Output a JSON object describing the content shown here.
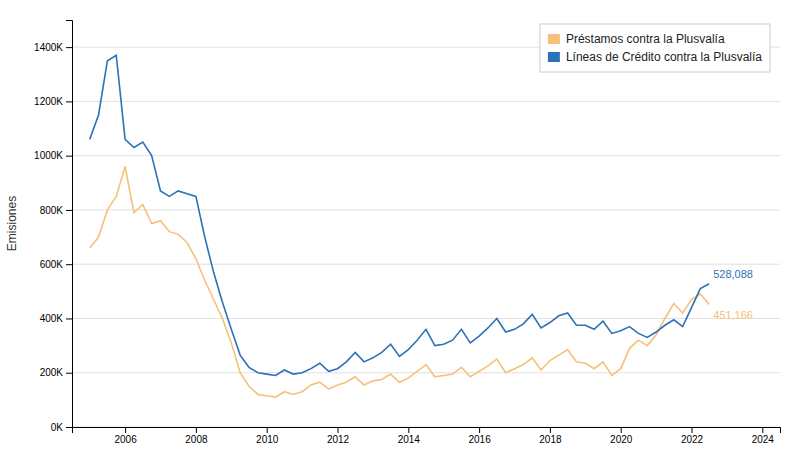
{
  "chart_data": {
    "type": "line",
    "y_label": "Emisiones",
    "x": [
      2005.0,
      2005.25,
      2005.5,
      2005.75,
      2006.0,
      2006.25,
      2006.5,
      2006.75,
      2007.0,
      2007.25,
      2007.5,
      2007.75,
      2008.0,
      2008.25,
      2008.5,
      2008.75,
      2009.0,
      2009.25,
      2009.5,
      2009.75,
      2010.0,
      2010.25,
      2010.5,
      2010.75,
      2011.0,
      2011.25,
      2011.5,
      2011.75,
      2012.0,
      2012.25,
      2012.5,
      2012.75,
      2013.0,
      2013.25,
      2013.5,
      2013.75,
      2014.0,
      2014.25,
      2014.5,
      2014.75,
      2015.0,
      2015.25,
      2015.5,
      2015.75,
      2016.0,
      2016.25,
      2016.5,
      2016.75,
      2017.0,
      2017.25,
      2017.5,
      2017.75,
      2018.0,
      2018.25,
      2018.5,
      2018.75,
      2019.0,
      2019.25,
      2019.5,
      2019.75,
      2020.0,
      2020.25,
      2020.5,
      2020.75,
      2021.0,
      2021.25,
      2021.5,
      2021.75,
      2022.0,
      2022.25,
      2022.5
    ],
    "series": [
      {
        "name": "Préstamos contra la Plusvalía",
        "color": "#f5c07a",
        "values": [
          660000,
          700000,
          800000,
          850000,
          960000,
          790000,
          820000,
          750000,
          760000,
          720000,
          710000,
          680000,
          620000,
          540000,
          470000,
          400000,
          310000,
          200000,
          150000,
          120000,
          115000,
          110000,
          130000,
          120000,
          130000,
          155000,
          165000,
          140000,
          155000,
          165000,
          185000,
          155000,
          170000,
          175000,
          195000,
          165000,
          180000,
          205000,
          230000,
          185000,
          190000,
          195000,
          220000,
          185000,
          205000,
          225000,
          250000,
          200000,
          215000,
          230000,
          255000,
          210000,
          245000,
          265000,
          285000,
          240000,
          235000,
          215000,
          240000,
          190000,
          215000,
          290000,
          320000,
          300000,
          340000,
          400000,
          455000,
          420000,
          470000,
          490000,
          451166
        ]
      },
      {
        "name": "Líneas de Crédito contra la Plusvalía",
        "color": "#2b72b8",
        "values": [
          1060000,
          1150000,
          1350000,
          1370000,
          1060000,
          1030000,
          1050000,
          1000000,
          870000,
          850000,
          870000,
          860000,
          850000,
          700000,
          570000,
          460000,
          360000,
          265000,
          220000,
          200000,
          195000,
          190000,
          210000,
          195000,
          200000,
          215000,
          235000,
          205000,
          215000,
          240000,
          275000,
          240000,
          255000,
          275000,
          305000,
          260000,
          285000,
          320000,
          360000,
          300000,
          305000,
          320000,
          360000,
          310000,
          335000,
          365000,
          400000,
          350000,
          360000,
          380000,
          415000,
          365000,
          385000,
          410000,
          420000,
          375000,
          375000,
          360000,
          390000,
          345000,
          355000,
          370000,
          345000,
          330000,
          350000,
          375000,
          395000,
          370000,
          440000,
          510000,
          528088
        ]
      }
    ],
    "annotations": [
      {
        "text": "528,088",
        "x": 2022.5,
        "y": 528088,
        "color": "#2b72b8"
      },
      {
        "text": "451,166",
        "x": 2022.5,
        "y": 451166,
        "color": "#f5c07a"
      }
    ],
    "xlim": [
      2004.5,
      2024.5
    ],
    "xticks": [
      2006,
      2008,
      2010,
      2012,
      2014,
      2016,
      2018,
      2020,
      2022,
      2024
    ],
    "ylim": [
      0,
      1500000
    ],
    "yticks": [
      {
        "value": 0,
        "label": "0K"
      },
      {
        "value": 200000,
        "label": "200K"
      },
      {
        "value": 400000,
        "label": "400K"
      },
      {
        "value": 600000,
        "label": "600K"
      },
      {
        "value": 800000,
        "label": "800K"
      },
      {
        "value": 1000000,
        "label": "1000K"
      },
      {
        "value": 1200000,
        "label": "1200K"
      },
      {
        "value": 1400000,
        "label": "1400K"
      }
    ],
    "grid": true,
    "legend": "upper right"
  }
}
